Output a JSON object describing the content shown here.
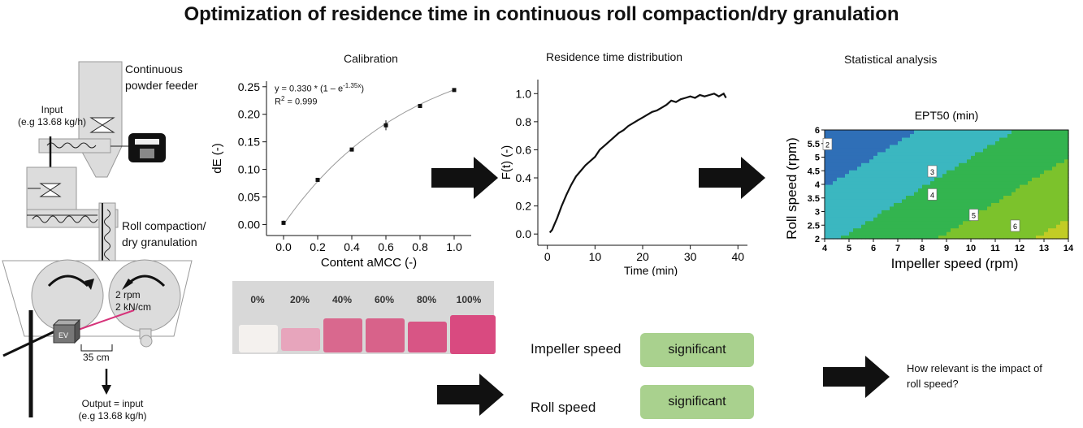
{
  "title": "Optimization of residence time in continuous roll compaction/dry granulation",
  "process": {
    "feeder_label_1": "Continuous",
    "feeder_label_2": "powder feeder",
    "input_label_1": "Input",
    "input_label_2": "(e.g 13.68 kg/h)",
    "rc_label_1": "Roll compaction/",
    "rc_label_2": "dry granulation",
    "roll_params_1": "2 rpm",
    "roll_params_2": "2 kN/cm",
    "ev_label": "EV",
    "distance_label": "35 cm",
    "output_label_1": "Output = input",
    "output_label_2": "(e.g 13.68 kg/h)"
  },
  "calibration": {
    "header": "Calibration",
    "equation": "y = 0.330 * (1 – e",
    "equation_exp": "-1.35x",
    "equation_close": ")",
    "r2_label": "R",
    "r2_sup": "2",
    "r2_value": " = 0.999",
    "swatches": [
      "0%",
      "20%",
      "40%",
      "60%",
      "80%",
      "100%"
    ],
    "swatch_colors": [
      "#f4f1ee",
      "#e7a5bc",
      "#d9688e",
      "#d8628a",
      "#d85585",
      "#d94a80"
    ]
  },
  "rtd": {
    "header": "Residence time distribution"
  },
  "stats": {
    "header": "Statistical analysis",
    "contour_title": "EPT50 (min)",
    "contour_labels": [
      "2",
      "3",
      "4",
      "5",
      "6"
    ]
  },
  "factors": [
    {
      "name": "Impeller speed",
      "result": "significant"
    },
    {
      "name": "Roll speed",
      "result": "significant"
    }
  ],
  "question": "How relevant is the impact of roll speed?",
  "chart_data": [
    {
      "type": "scatter",
      "title": "",
      "xlabel": "Content aMCC (-)",
      "ylabel": "dE (-)",
      "xlim": [
        -0.1,
        1.1
      ],
      "ylim": [
        -0.02,
        0.26
      ],
      "x": [
        0.0,
        0.2,
        0.4,
        0.6,
        0.8,
        1.0
      ],
      "y": [
        0.003,
        0.081,
        0.136,
        0.18,
        0.215,
        0.244
      ],
      "yerr": [
        0.004,
        0.003,
        0.002,
        0.009,
        0.002,
        0.003
      ],
      "fit": "y = 0.330 * (1 - e^(-1.35x))",
      "xticks": [
        "0.0",
        "0.2",
        "0.4",
        "0.6",
        "0.8",
        "1.0"
      ],
      "yticks": [
        "0.00",
        "0.05",
        "0.10",
        "0.15",
        "0.20",
        "0.25"
      ]
    },
    {
      "type": "line",
      "title": "",
      "xlabel": "Time (min)",
      "ylabel": "F(t) (-)",
      "xlim": [
        -2,
        42
      ],
      "ylim": [
        -0.08,
        1.1
      ],
      "xticks": [
        "0",
        "10",
        "20",
        "30",
        "40"
      ],
      "yticks": [
        "0.0",
        "0.2",
        "0.4",
        "0.6",
        "0.8",
        "1.0"
      ],
      "x": [
        0.5,
        1,
        1.5,
        2,
        3,
        4,
        5,
        6,
        7,
        8,
        9,
        10,
        11,
        12,
        13,
        14,
        15,
        16,
        17,
        18,
        19,
        20,
        21,
        22,
        23,
        24,
        25,
        26,
        27,
        28,
        29,
        30,
        31,
        32,
        33,
        34,
        35,
        36,
        37,
        37.5
      ],
      "y": [
        0.01,
        0.03,
        0.07,
        0.11,
        0.2,
        0.28,
        0.35,
        0.41,
        0.45,
        0.49,
        0.52,
        0.55,
        0.6,
        0.63,
        0.66,
        0.69,
        0.72,
        0.74,
        0.77,
        0.79,
        0.81,
        0.83,
        0.85,
        0.87,
        0.88,
        0.9,
        0.92,
        0.95,
        0.94,
        0.96,
        0.97,
        0.98,
        0.97,
        0.99,
        0.98,
        0.99,
        1.0,
        0.98,
        1.0,
        0.97
      ]
    },
    {
      "type": "heatmap",
      "title": "EPT50 (min)",
      "xlabel": "Impeller speed (rpm)",
      "ylabel": "Roll speed (rpm)",
      "xlim": [
        4,
        14
      ],
      "ylim": [
        2,
        6
      ],
      "xticks": [
        "4",
        "5",
        "6",
        "7",
        "8",
        "9",
        "10",
        "11",
        "12",
        "13",
        "14"
      ],
      "yticks": [
        "2",
        "2.5",
        "3",
        "3.5",
        "4",
        "4.5",
        "5",
        "5.5",
        "6"
      ],
      "contour_levels": [
        2,
        3,
        4,
        5,
        6
      ],
      "colors": [
        "#2f6fb7",
        "#3bb7c0",
        "#33b44f",
        "#7cc22c",
        "#c2cc25",
        "#e08a1f",
        "#d32020"
      ]
    }
  ]
}
